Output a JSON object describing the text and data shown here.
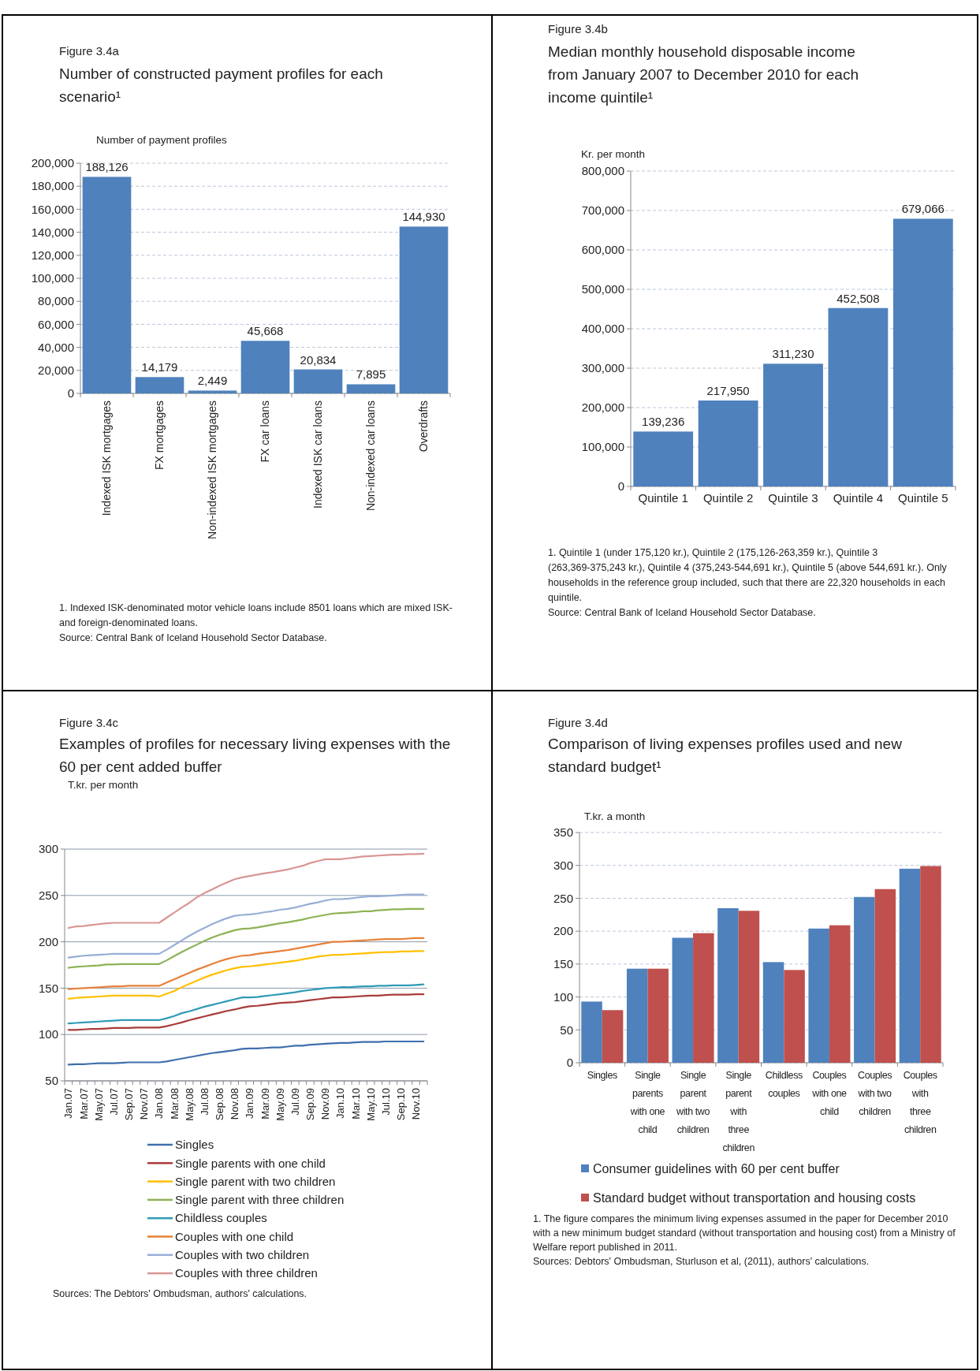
{
  "chart_data": [
    {
      "type": "bar",
      "subtitle": "Figure 3.4a",
      "title": "Number of constructed payment profiles for each scenario¹",
      "ylabel": "Number of payment profiles",
      "categories": [
        "Indexed ISK mortgages",
        "FX mortgages",
        "Non-indexed ISK mortgages",
        "FX car loans",
        "Indexed ISK car loans",
        "Non-indexed car loans",
        "Overdrafts"
      ],
      "values": [
        188126,
        14179,
        2449,
        45668,
        20834,
        7895,
        144930
      ],
      "value_labels": [
        "188,126",
        "14,179",
        "2,449",
        "45,668",
        "20,834",
        "7,895",
        "144,930"
      ],
      "color": "#4f81bd",
      "ylim": [
        0,
        200000
      ],
      "yticks": [
        0,
        {
          "value": 20000,
          "label": "20,000"
        },
        {
          "value": 40000,
          "label": "40,000"
        },
        {
          "value": 60000,
          "label": "60,000"
        },
        {
          "value": 80000,
          "label": "80,000"
        },
        {
          "value": 100000,
          "label": "100,000"
        },
        {
          "value": 120000,
          "label": "120,000"
        },
        {
          "value": 140000,
          "label": "140,000"
        },
        {
          "value": 160000,
          "label": "160,000"
        },
        {
          "value": 180000,
          "label": "180,000"
        },
        {
          "value": 200000,
          "label": "200,000"
        }
      ],
      "grid": "y",
      "annotations": [
        "1. Indexed ISK-denominated motor vehicle loans include 8501 loans which are mixed ISK- and foreign-denominated  loans.",
        "Source: Central Bank of Iceland Household Sector Database."
      ]
    },
    {
      "type": "bar",
      "subtitle": "Figure 3.4b",
      "title": "Median monthly household disposable income from January 2007 to December 2010 for each income quintile¹",
      "ylabel": "Kr. per month",
      "categories": [
        "Quintile 1",
        "Quintile 2",
        "Quintile 3",
        "Quintile 4",
        "Quintile 5"
      ],
      "values": [
        139236,
        217950,
        311230,
        452508,
        679066
      ],
      "value_labels": [
        "139,236",
        "217,950",
        "311,230",
        "452,508",
        "679,066"
      ],
      "color": "#4f81bd",
      "ylim": [
        0,
        800000
      ],
      "yticks": [
        0,
        {
          "value": 100000,
          "label": "100,000"
        },
        {
          "value": 200000,
          "label": "200,000"
        },
        {
          "value": 300000,
          "label": "300,000"
        },
        {
          "value": 400000,
          "label": "400,000"
        },
        {
          "value": 500000,
          "label": "500,000"
        },
        {
          "value": 600000,
          "label": "600,000"
        },
        {
          "value": 700000,
          "label": "700,000"
        },
        {
          "value": 800000,
          "label": "800,000"
        }
      ],
      "grid": "y",
      "annotations": [
        "1. Quintile 1 (under 175,120 kr.), Quintile 2 (175,126-263,359 kr.), Quintile 3 (263,369-375,243 kr.), Quintile 4 (375,243-544,691 kr.), Quintile 5 (above 544,691 kr.). Only households in the reference group included, such that there are 22,320 households in each quintile.",
        "Source: Central Bank of Iceland Household Sector Database."
      ]
    },
    {
      "type": "line",
      "subtitle": "Figure 3.4c",
      "title": "Examples of profiles for necessary living expenses with the 60 per cent added buffer",
      "ylabel": "T.kr. per month",
      "categories": [
        "Jan.07",
        null,
        "Mar.07",
        null,
        "May.07",
        null,
        "Jul.07",
        null,
        "Sep.07",
        null,
        "Nov.07",
        null,
        "Jan.08",
        null,
        "Mar.08",
        null,
        "May.08",
        null,
        "Jul.08",
        null,
        "Sep.08",
        null,
        "Nov.08",
        null,
        "Jan.09",
        null,
        "Mar.09",
        null,
        "May.09",
        null,
        "Jul.09",
        null,
        "Sep.09",
        null,
        "Nov.09",
        null,
        "Jan.10",
        null,
        "Mar.10",
        null,
        "May.10",
        null,
        "Jul.10",
        null,
        "Sep.10",
        null,
        "Nov.10",
        null
      ],
      "ylim": [
        50,
        300
      ],
      "yticks": [
        50,
        100,
        150,
        200,
        250,
        300
      ],
      "grid": "y",
      "legend": "bottom",
      "series": [
        {
          "name": "Singles",
          "color": "#3f6fae",
          "values": [
            67.5,
            68,
            68,
            68.5,
            69,
            69,
            69,
            69.5,
            70,
            70,
            70,
            70,
            70,
            71,
            72.5,
            74,
            75.5,
            77,
            78.5,
            80,
            81,
            82,
            83,
            84.5,
            85,
            85,
            85.5,
            86,
            86,
            87,
            88,
            88,
            89,
            89.5,
            90,
            90.5,
            91,
            91,
            91.5,
            92,
            92,
            92,
            92.5,
            92.5,
            92.5,
            92.5,
            92.5,
            92.5
          ]
        },
        {
          "name": "Single parents with one child",
          "color": "#a83c3a",
          "values": [
            105,
            105,
            105.5,
            106,
            106,
            106.5,
            107,
            107,
            107,
            107.5,
            107.5,
            107.5,
            107.5,
            109,
            111,
            113,
            115.5,
            117.5,
            119.5,
            121.5,
            123.5,
            125.5,
            127,
            129,
            130.5,
            131,
            132,
            133,
            134,
            134.5,
            135,
            136,
            137,
            138,
            139,
            140,
            140,
            140.5,
            141,
            141.5,
            142,
            142,
            142.5,
            143,
            143,
            143,
            143.5,
            143.5
          ]
        },
        {
          "name": "Single parent with two children",
          "color": "#ffc000",
          "values": [
            138.5,
            139.5,
            140,
            140.5,
            141,
            141.5,
            142,
            142,
            142,
            142,
            142,
            142,
            141,
            144,
            147,
            151,
            154.5,
            158,
            161.5,
            164.5,
            167,
            169.5,
            171.5,
            173,
            173.5,
            174.5,
            175.5,
            176.5,
            177.5,
            178.5,
            179.5,
            181,
            182.5,
            184,
            185,
            186,
            186,
            186.5,
            187,
            187.5,
            188,
            188.5,
            189,
            189,
            189.5,
            189.5,
            190,
            190
          ]
        },
        {
          "name": "Single parent with three children",
          "color": "#8db254",
          "values": [
            172,
            173,
            173.5,
            174,
            174.5,
            175.5,
            175.5,
            176,
            176,
            176,
            176,
            176,
            176,
            180,
            184.5,
            189,
            193,
            197,
            201,
            204.5,
            207.5,
            210,
            212.5,
            214,
            214.5,
            215.5,
            217,
            218.5,
            220,
            221,
            222.5,
            224,
            226,
            227.5,
            229,
            230.5,
            231,
            231.5,
            232,
            233,
            233,
            234,
            234.5,
            235,
            235,
            235.5,
            235.5,
            235.5
          ]
        },
        {
          "name": "Childless couples",
          "color": "#2f9bb5",
          "values": [
            112,
            112.5,
            113,
            113.5,
            114,
            114.5,
            115,
            115.5,
            115.5,
            115.5,
            115.5,
            115.5,
            115.5,
            117.5,
            120,
            123,
            125,
            127.5,
            130,
            132,
            134,
            136,
            138,
            140,
            140,
            140.5,
            141.5,
            142.5,
            143.5,
            144.5,
            145.5,
            147,
            148,
            149,
            150,
            150.5,
            151,
            151,
            151.5,
            152,
            152,
            152.5,
            152.5,
            153,
            153,
            153,
            153.5,
            154
          ]
        },
        {
          "name": "Couples with one child",
          "color": "#e6813a",
          "values": [
            149,
            149.5,
            150,
            150.5,
            151,
            151.5,
            152,
            152,
            152.5,
            152.5,
            152.5,
            152.5,
            152.5,
            156,
            159.5,
            163,
            166.5,
            170,
            173,
            176,
            179,
            181.5,
            183.5,
            185,
            185.5,
            187,
            188,
            189,
            190,
            191,
            192.5,
            194,
            195.5,
            197,
            198.5,
            200,
            200,
            200.5,
            201,
            201.5,
            202,
            202.5,
            203,
            203,
            203,
            203.5,
            204,
            204
          ]
        },
        {
          "name": "Couples with two children",
          "color": "#97aed6",
          "values": [
            183,
            184,
            185,
            185.5,
            186,
            186.5,
            187,
            187,
            187,
            187,
            187,
            187,
            187,
            191.5,
            196.5,
            201.5,
            206.5,
            211,
            215,
            219,
            222.5,
            225.5,
            228,
            229,
            229.5,
            230.5,
            232,
            233,
            234.5,
            235.5,
            237,
            239,
            241,
            242.5,
            244.5,
            246,
            246,
            246.5,
            247.5,
            248.5,
            249,
            249,
            249.5,
            250,
            250.5,
            251,
            251,
            251
          ]
        },
        {
          "name": "Couples with three children",
          "color": "#d99694",
          "values": [
            215,
            216.5,
            217,
            218,
            219,
            220,
            220.5,
            220.5,
            220.5,
            220.5,
            220.5,
            220.5,
            220.5,
            226,
            231.5,
            237,
            242,
            248,
            252.5,
            256.5,
            260.5,
            264,
            267.5,
            269.5,
            271,
            272.5,
            274,
            275,
            276.5,
            278,
            280,
            282,
            285,
            287,
            289,
            289,
            289,
            290,
            291,
            292,
            292.5,
            293,
            293.5,
            294,
            294,
            294.5,
            294.5,
            295
          ]
        }
      ],
      "annotations": [
        "Sources: The Debtors' Ombudsman,  authors' calculations."
      ]
    },
    {
      "type": "bar",
      "subtitle": "Figure 3.4d",
      "title": "Comparison of living expenses profiles used and new standard budget¹",
      "ylabel": "T.kr. a month",
      "categories": [
        "Singles",
        "Single parents with one child",
        "Single parent with two children",
        "Single parent with three children",
        "Childless couples",
        "Couples with one child",
        "Couples with two children",
        "Couples with three children"
      ],
      "ylim": [
        0,
        350
      ],
      "yticks": [
        0,
        50,
        100,
        150,
        200,
        250,
        300,
        350
      ],
      "grid": "y",
      "legend": "bottom",
      "series": [
        {
          "name": "Consumer guidelines with 60 per cent buffer",
          "color": "#4f81bd",
          "values": [
            93,
            143,
            190,
            235,
            153,
            204,
            252,
            295
          ]
        },
        {
          "name": "Standard budget without transportation and housing costs",
          "color": "#c0504d",
          "values": [
            80,
            143,
            197,
            231,
            141,
            209,
            264,
            299
          ]
        }
      ],
      "annotations": [
        "1. The figure compares the minimum living expenses assumed in the paper for December 2010 with a new minimum budget standard (without transportation and housing cost) from a Ministry of Welfare report published in 2011.",
        "Sources: Debtors' Ombudsman, Sturluson et al, (2011), authors' calculations."
      ]
    }
  ]
}
